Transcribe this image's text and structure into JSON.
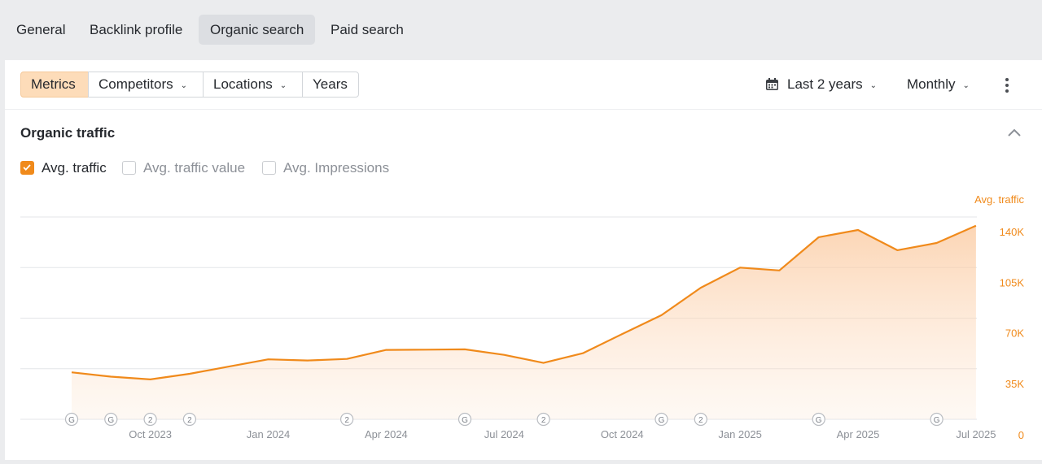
{
  "tabs": [
    {
      "label": "General",
      "active": false
    },
    {
      "label": "Backlink profile",
      "active": false
    },
    {
      "label": "Organic search",
      "active": true
    },
    {
      "label": "Paid search",
      "active": false
    }
  ],
  "toolbar": {
    "metrics": "Metrics",
    "competitors": "Competitors",
    "locations": "Locations",
    "years": "Years",
    "date_range": "Last 2 years",
    "interval": "Monthly"
  },
  "section": {
    "title": "Organic traffic",
    "checkboxes": [
      {
        "label": "Avg. traffic",
        "checked": true
      },
      {
        "label": "Avg. traffic value",
        "checked": false
      },
      {
        "label": "Avg. Impressions",
        "checked": false
      }
    ]
  },
  "colors": {
    "accent": "#f08a1b",
    "axis_text": "#8c9097",
    "active_segment": "#fddcb9"
  },
  "chart_data": {
    "type": "area",
    "series": [
      {
        "name": "Avg. traffic",
        "x": [
          "2023-08",
          "2023-09",
          "2023-10",
          "2023-11",
          "2023-12",
          "2024-01",
          "2024-02",
          "2024-03",
          "2024-04",
          "2024-05",
          "2024-06",
          "2024-07",
          "2024-08",
          "2024-09",
          "2024-10",
          "2024-11",
          "2024-12",
          "2025-01",
          "2025-02",
          "2025-03",
          "2025-04",
          "2025-05",
          "2025-06",
          "2025-07"
        ],
        "values": [
          32500,
          29500,
          27600,
          31500,
          36500,
          41500,
          40700,
          41800,
          48000,
          48200,
          48400,
          44600,
          39000,
          45700,
          59000,
          72000,
          91000,
          105000,
          103000,
          126000,
          131000,
          117000,
          122000,
          134000
        ]
      }
    ],
    "x_ticks": [
      "Oct 2023",
      "Jan 2024",
      "Apr 2024",
      "Jul 2024",
      "Oct 2024",
      "Jan 2025",
      "Apr 2025",
      "Jul 2025"
    ],
    "y_ticks": [
      "0",
      "35K",
      "70K",
      "105K",
      "140K"
    ],
    "ylabel": "Avg. traffic",
    "ylim": [
      0,
      140000
    ],
    "grid": true,
    "markers": [
      {
        "month": "2023-08",
        "label": "G"
      },
      {
        "month": "2023-09",
        "label": "G"
      },
      {
        "month": "2023-10",
        "label": "2"
      },
      {
        "month": "2023-11",
        "label": "2"
      },
      {
        "month": "2024-03",
        "label": "2"
      },
      {
        "month": "2024-06",
        "label": "G"
      },
      {
        "month": "2024-08",
        "label": "2"
      },
      {
        "month": "2024-11",
        "label": "G"
      },
      {
        "month": "2024-12",
        "label": "2"
      },
      {
        "month": "2025-03",
        "label": "G"
      },
      {
        "month": "2025-06",
        "label": "G"
      }
    ]
  }
}
